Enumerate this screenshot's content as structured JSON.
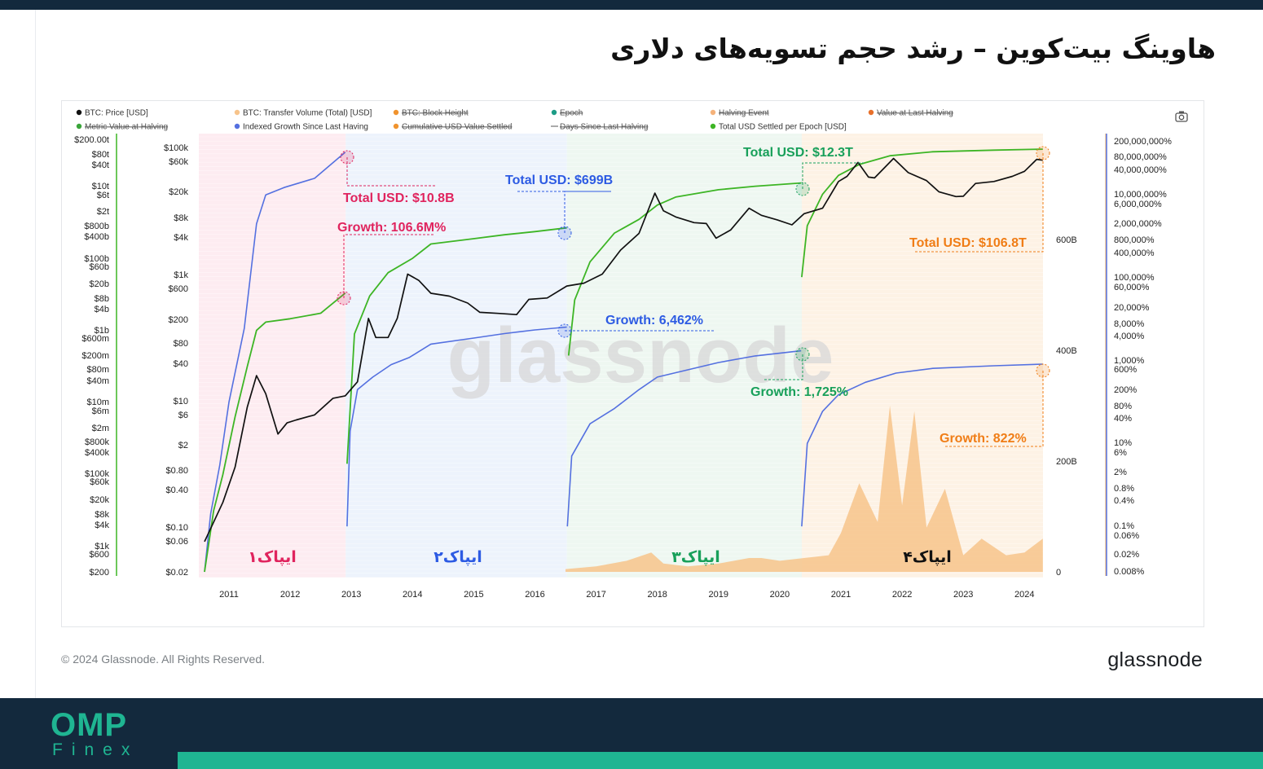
{
  "page": {
    "title": "هاوینگ بیت‌کوین – رشد حجم تسویه‌های دلاری",
    "copyright": "© 2024 Glassnode. All Rights Reserved.",
    "brand": "glassnode",
    "watermark": "glassnode",
    "footer_logo_top": "OMP",
    "footer_logo_bottom": "Finex",
    "camera_icon": "camera-icon",
    "colors": {
      "dark_bar": "#13293d",
      "brand_green": "#1fb592"
    }
  },
  "chart_data": {
    "type": "line",
    "title": "هاوینگ بیت‌کوین – رشد حجم تسویه‌های دلاری",
    "legend": [
      {
        "label": "BTC: Price [USD]",
        "color": "#111111",
        "active": true
      },
      {
        "label": "BTC: Transfer Volume (Total) [USD]",
        "color": "#f7c48b",
        "active": true
      },
      {
        "label": "BTC: Block Height",
        "color": "#f0932e",
        "active": false
      },
      {
        "label": "Epoch",
        "color": "#1c9c86",
        "active": false
      },
      {
        "label": "Halving Event",
        "color": "#f5b27a",
        "active": false
      },
      {
        "label": "Value at Last Halving",
        "color": "#e8702a",
        "active": false
      },
      {
        "label": "Metric Value at Halving",
        "color": "#3aa53a",
        "active": false
      },
      {
        "label": "Indexed Growth Since Last Having",
        "color": "#5470e0",
        "active": true
      },
      {
        "label": "Cumulative USD Value Settled",
        "color": "#f0932e",
        "active": false
      },
      {
        "label": "Days Since Last Halving",
        "color": "#555555",
        "active": false
      },
      {
        "label": "Total USD Settled per Epoch [USD]",
        "color": "#3db525",
        "active": true
      }
    ],
    "x_ticks": [
      "2011",
      "2012",
      "2013",
      "2014",
      "2015",
      "2016",
      "2017",
      "2018",
      "2019",
      "2020",
      "2021",
      "2022",
      "2023",
      "2024"
    ],
    "axes": {
      "settled_left": [
        "$200.00t",
        "$80t",
        "$40t",
        "$10t",
        "$6t",
        "$2t",
        "$800b",
        "$400b",
        "$100b",
        "$60b",
        "$20b",
        "$8b",
        "$4b",
        "$1b",
        "$600m",
        "$200m",
        "$80m",
        "$40m",
        "$10m",
        "$6m",
        "$2m",
        "$800k",
        "$400k",
        "$100k",
        "$60k",
        "$20k",
        "$8k",
        "$4k",
        "$1k",
        "$600",
        "$200"
      ],
      "price_left": [
        "$100k",
        "$60k",
        "$20k",
        "$8k",
        "$4k",
        "$1k",
        "$600",
        "$200",
        "$80",
        "$40",
        "$10",
        "$6",
        "$2",
        "$0.80",
        "$0.40",
        "$0.10",
        "$0.06",
        "$0.02"
      ],
      "volume_right": [
        "600B",
        "400B",
        "200B",
        "0"
      ],
      "growth_right": [
        "200,000,000%",
        "80,000,000%",
        "40,000,000%",
        "10,000,000%",
        "6,000,000%",
        "2,000,000%",
        "800,000%",
        "400,000%",
        "100,000%",
        "60,000%",
        "20,000%",
        "8,000%",
        "4,000%",
        "1,000%",
        "600%",
        "200%",
        "80%",
        "40%",
        "10%",
        "6%",
        "2%",
        "0.8%",
        "0.4%",
        "0.1%",
        "0.06%",
        "0.02%",
        "0.008%"
      ]
    },
    "epochs": [
      {
        "label": "ایپاک۱",
        "start": "2010-07",
        "end": "2012-11-28",
        "color": "#e0245e",
        "bg": "#fde9ef"
      },
      {
        "label": "ایپاک۲",
        "start": "2012-11-28",
        "end": "2016-07-09",
        "color": "#2d5be3",
        "bg": "#eaf1fc"
      },
      {
        "label": "ایپاک۳",
        "start": "2016-07-09",
        "end": "2020-05-11",
        "color": "#18a05a",
        "bg": "#ebf6ee"
      },
      {
        "label": "ایپاک۴",
        "start": "2020-05-11",
        "end": "2024-04-20",
        "color": "#111111",
        "bg": "#fdf0e1"
      }
    ],
    "annotations": [
      {
        "text": "Total USD: $10.8B",
        "color": "#e0245e"
      },
      {
        "text": "Growth: 106.6M%",
        "color": "#e0245e"
      },
      {
        "text": "Total USD: $699B",
        "color": "#2d5be3"
      },
      {
        "text": "Growth: 6,462%",
        "color": "#2d5be3"
      },
      {
        "text": "Total USD: $12.3T",
        "color": "#18a05a"
      },
      {
        "text": "Growth: 1,725%",
        "color": "#18a05a"
      },
      {
        "text": "Total USD: $106.8T",
        "color": "#f07d16"
      },
      {
        "text": "Growth: 822%",
        "color": "#f07d16"
      }
    ],
    "series": [
      {
        "name": "BTC: Price [USD]",
        "axis": "price_left",
        "scale": "log",
        "color": "#111111",
        "x": [
          2010.6,
          2010.9,
          2011.1,
          2011.3,
          2011.45,
          2011.6,
          2011.8,
          2011.95,
          2012.1,
          2012.4,
          2012.7,
          2012.9,
          2013.1,
          2013.28,
          2013.4,
          2013.6,
          2013.75,
          2013.92,
          2014.1,
          2014.3,
          2014.6,
          2014.9,
          2015.1,
          2015.4,
          2015.7,
          2015.9,
          2016.2,
          2016.52,
          2016.8,
          2017.1,
          2017.4,
          2017.7,
          2017.96,
          2018.1,
          2018.3,
          2018.6,
          2018.8,
          2018.96,
          2019.2,
          2019.5,
          2019.7,
          2019.96,
          2020.2,
          2020.4,
          2020.7,
          2020.96,
          2021.1,
          2021.28,
          2021.45,
          2021.55,
          2021.86,
          2022.1,
          2022.4,
          2022.6,
          2022.88,
          2023.0,
          2023.2,
          2023.5,
          2023.8,
          2024.0,
          2024.2,
          2024.3
        ],
        "y": [
          0.06,
          0.25,
          0.9,
          8,
          25,
          13,
          3,
          4.5,
          5,
          6,
          11,
          12,
          20,
          200,
          100,
          100,
          200,
          1000,
          800,
          500,
          450,
          350,
          250,
          240,
          230,
          400,
          420,
          650,
          720,
          1000,
          2400,
          4400,
          19000,
          10000,
          8000,
          6500,
          6300,
          3700,
          5000,
          11000,
          8500,
          7200,
          6000,
          9000,
          11000,
          29000,
          35000,
          58000,
          34000,
          33000,
          67000,
          40000,
          30000,
          20000,
          16800,
          17000,
          27000,
          29000,
          35000,
          42000,
          65000,
          63000
        ]
      },
      {
        "name": "Total USD Settled per Epoch [USD]",
        "axis": "settled_left",
        "scale": "log",
        "color": "#3db525",
        "x": [
          2010.6,
          2010.75,
          2010.9,
          2011.1,
          2011.3,
          2011.45,
          2011.6,
          2012.0,
          2012.5,
          2012.9,
          2012.93,
          2013.05,
          2013.3,
          2013.6,
          2014.0,
          2014.3,
          2015.0,
          2015.5,
          2016.0,
          2016.52,
          2016.55,
          2016.65,
          2016.9,
          2017.3,
          2017.7,
          2018.0,
          2018.3,
          2019.0,
          2019.6,
          2020.35,
          2020.36,
          2020.45,
          2020.7,
          2020.96,
          2021.3,
          2021.8,
          2022.5,
          2023.5,
          2024.3
        ],
        "y": [
          200,
          10000,
          100000,
          4000000,
          100000000,
          1000000000,
          1700000000,
          2100000000,
          3000000000,
          10800000000,
          200000,
          800000000,
          9000000000,
          40000000000,
          100000000000,
          250000000000,
          350000000000,
          450000000000,
          550000000000,
          699000000000,
          200000000,
          7000000000,
          80000000000,
          500000000000,
          1200000000000,
          3000000000000,
          5000000000000,
          8000000000000,
          10000000000000,
          12300000000000,
          30000000000,
          800000000000,
          6000000000000,
          20000000000000,
          40000000000000,
          70000000000000,
          90000000000000,
          100000000000000,
          106800000000000
        ]
      },
      {
        "name": "Indexed Growth Since Last Having",
        "axis": "growth_right",
        "scale": "log",
        "color": "#5470e0",
        "x": [
          2010.6,
          2010.7,
          2010.85,
          2011.0,
          2011.25,
          2011.45,
          2011.6,
          2011.9,
          2012.4,
          2012.9,
          2012.93,
          2012.98,
          2013.1,
          2013.35,
          2013.65,
          2013.95,
          2014.3,
          2015.0,
          2015.5,
          2016.0,
          2016.52,
          2016.53,
          2016.6,
          2016.9,
          2017.3,
          2017.7,
          2018.0,
          2019.0,
          2019.6,
          2020.35,
          2020.36,
          2020.45,
          2020.7,
          2020.96,
          2021.4,
          2021.9,
          2022.5,
          2023.5,
          2024.3
        ],
        "y": [
          0.008,
          0.2,
          3,
          100,
          6000,
          2000000,
          10000000,
          15000000,
          25000000,
          106600000,
          0.1,
          20,
          200,
          400,
          800,
          1200,
          2500,
          3500,
          4500,
          5500,
          6462,
          0.1,
          5,
          30,
          70,
          200,
          400,
          900,
          1300,
          1725,
          0.1,
          10,
          60,
          150,
          300,
          500,
          650,
          750,
          822
        ]
      },
      {
        "name": "BTC: Transfer Volume (Total) [USD]",
        "axis": "volume_right",
        "scale": "linear",
        "color": "#f7c48b",
        "x": [
          2016.5,
          2017.0,
          2017.5,
          2017.9,
          2018.1,
          2018.5,
          2019.0,
          2019.5,
          2019.7,
          2020.0,
          2020.4,
          2020.8,
          2021.0,
          2021.3,
          2021.6,
          2021.8,
          2022.0,
          2022.2,
          2022.4,
          2022.7,
          2023.0,
          2023.3,
          2023.7,
          2024.0,
          2024.3
        ],
        "y": [
          5000000000,
          10000000000,
          20000000000,
          35000000000,
          15000000000,
          10000000000,
          15000000000,
          25000000000,
          25000000000,
          20000000000,
          25000000000,
          30000000000,
          70000000000,
          160000000000,
          90000000000,
          300000000000,
          120000000000,
          290000000000,
          80000000000,
          150000000000,
          30000000000,
          60000000000,
          30000000000,
          35000000000,
          60000000000
        ]
      }
    ]
  }
}
